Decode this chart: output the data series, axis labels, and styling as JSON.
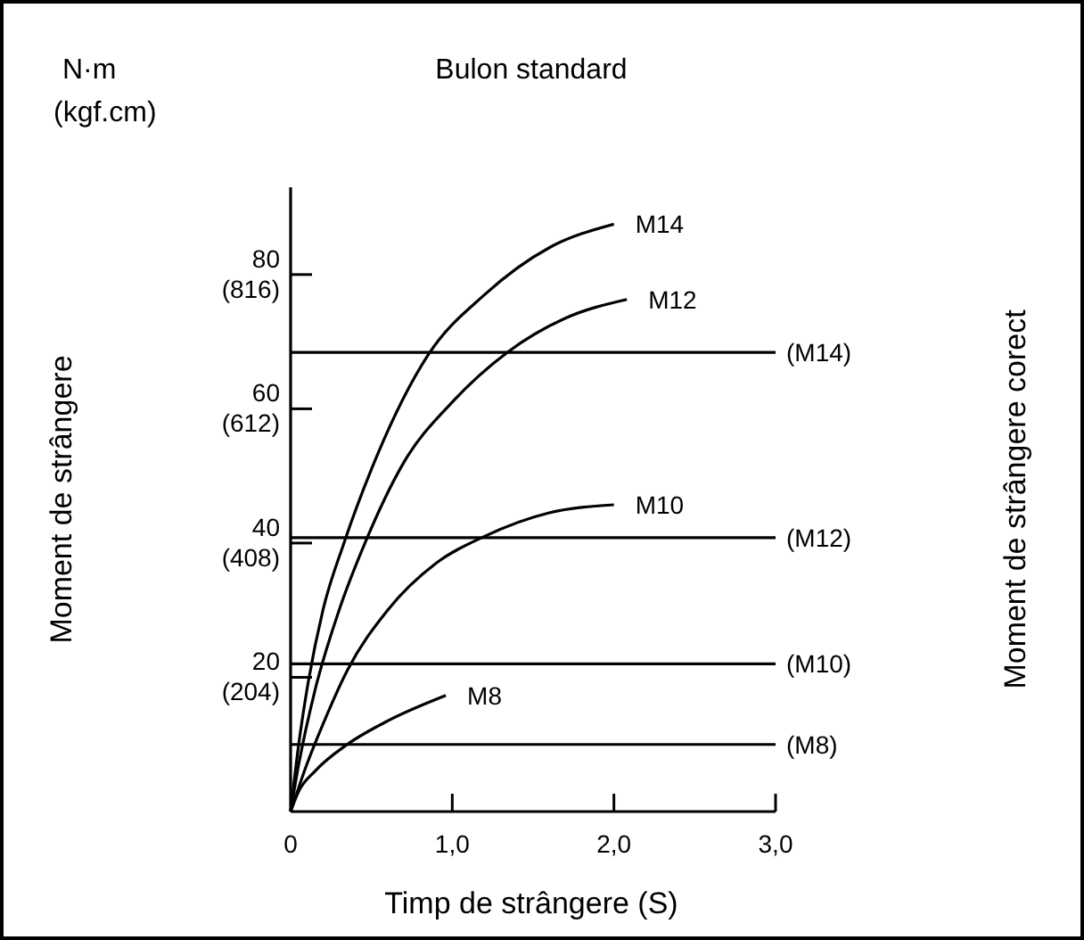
{
  "chart_data": {
    "type": "line",
    "title": "Bulon standard",
    "xlabel": "Timp de strângere (S)",
    "annotations": [
      "N·m",
      "(kgf.cm)",
      "Moment de strângere",
      "Moment de strângere corect"
    ],
    "xlim": [
      0,
      3
    ],
    "xticks": [
      0,
      {
        "value": 1,
        "label": "1,0"
      },
      {
        "value": 2,
        "label": "2,0"
      },
      {
        "value": 3,
        "label": "3,0"
      }
    ],
    "ylim": [
      0,
      93
    ],
    "yticks": [
      20,
      40,
      60,
      80
    ],
    "y2lim": [
      0,
      948.6
    ],
    "y2ticks": [
      {
        "value": 204,
        "label": "(204)"
      },
      {
        "value": 408,
        "label": "(408)"
      },
      {
        "value": 612,
        "label": "(612)"
      },
      {
        "value": 816,
        "label": "(816)"
      }
    ],
    "grid": false,
    "marker": "none",
    "line_style": "solid",
    "series": [
      {
        "name": "M14",
        "color": "#000000",
        "x": [
          0,
          0.05,
          0.1,
          0.2,
          0.33,
          0.5,
          0.85,
          1.2,
          1.6,
          2.0
        ],
        "values": [
          0,
          10,
          18,
          30,
          40,
          51,
          68,
          77,
          84,
          87.5
        ]
      },
      {
        "name": "M12",
        "color": "#000000",
        "x": [
          0,
          0.05,
          0.15,
          0.3,
          0.46,
          0.7,
          1.0,
          1.34,
          1.7,
          2.08
        ],
        "values": [
          0,
          7,
          18,
          30,
          40,
          52,
          61,
          68.4,
          73.5,
          76.3
        ]
      },
      {
        "name": "M10",
        "color": "#000000",
        "x": [
          0,
          0.1,
          0.2,
          0.35,
          0.6,
          0.9,
          1.2,
          1.6,
          2.0
        ],
        "values": [
          0,
          7,
          13,
          21,
          30,
          37,
          41,
          44.5,
          45.7
        ]
      },
      {
        "name": "M8",
        "color": "#000000",
        "x": [
          0,
          0.05,
          0.15,
          0.35,
          0.6,
          0.96
        ],
        "values": [
          0,
          3,
          6,
          10,
          13.5,
          17.3
        ]
      }
    ],
    "ref_lines": [
      {
        "axis": "y",
        "value": 68.4,
        "label": "(M14)",
        "color": "#000000"
      },
      {
        "axis": "y",
        "value": 40.8,
        "label": "(M12)",
        "color": "#000000"
      },
      {
        "axis": "y",
        "value": 22,
        "label": "(M10)",
        "color": "#000000"
      },
      {
        "axis": "y",
        "value": 10,
        "label": "(M8)",
        "color": "#000000"
      }
    ]
  }
}
